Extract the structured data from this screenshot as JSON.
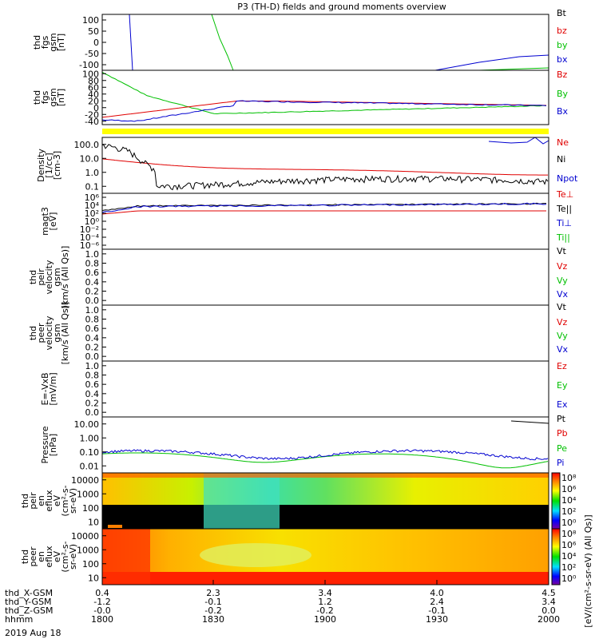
{
  "title": "P3 (TH-D) fields and ground moments overview",
  "footer": {
    "rows": [
      {
        "label": "thd_X-GSM",
        "values": [
          "0.4",
          "2.3",
          "3.4",
          "4.0",
          "4.5"
        ]
      },
      {
        "label": "thd_Y-GSM",
        "values": [
          "-1.2",
          "-0.1",
          "1.2",
          "2.4",
          "3.4"
        ]
      },
      {
        "label": "thd_Z-GSM",
        "values": [
          "-0.0",
          "-0.2",
          "-0.2",
          "-0.1",
          "0.0"
        ]
      },
      {
        "label": "hhmm",
        "values": [
          "1800",
          "1830",
          "1900",
          "1930",
          "2000"
        ]
      }
    ],
    "date": "2019 Aug 18"
  },
  "colors": {
    "black": "#000000",
    "red": "#e00000",
    "green": "#00c000",
    "blue": "#0000d0",
    "yellow": "#ffff00"
  },
  "chart_data": [
    {
      "type": "line",
      "ylabel": [
        "thd",
        "fgs",
        "gsm",
        "[nT]"
      ],
      "ylim": [
        -100,
        100
      ],
      "yticks": [
        "100",
        "50",
        "0",
        "-50",
        "-100"
      ],
      "legend": [
        {
          "name": "Bt",
          "color": "black"
        },
        {
          "name": "bz",
          "color": "red"
        },
        {
          "name": "by",
          "color": "green"
        },
        {
          "name": "bx",
          "color": "blue"
        }
      ]
    },
    {
      "type": "line",
      "ylabel": [
        "thd",
        "fgs",
        "gsm",
        "[nT]"
      ],
      "ylim": [
        -45,
        105
      ],
      "yticks": [
        "100",
        "80",
        "60",
        "40",
        "20",
        "0",
        "-20",
        "-40"
      ],
      "legend": [
        {
          "name": "Bz",
          "color": "red"
        },
        {
          "name": "By",
          "color": "green"
        },
        {
          "name": "Bx",
          "color": "blue"
        }
      ]
    },
    {
      "type": "line",
      "scale": "log",
      "ylabel": [
        "Density",
        "[1/cc]",
        "[cm-3]"
      ],
      "yticks": [
        "100.0",
        "10.0",
        "1.0",
        "0.1"
      ],
      "legend": [
        {
          "name": "Ne",
          "color": "red"
        },
        {
          "name": "Ni",
          "color": "black"
        },
        {
          "name": "Npot",
          "color": "blue"
        }
      ]
    },
    {
      "type": "line",
      "scale": "log",
      "ylabel": [
        "magt3",
        "[eV]"
      ],
      "yticks": [
        "10⁶",
        "10⁴",
        "10²",
        "10⁰",
        "10⁻²",
        "10⁻⁴",
        "10⁻⁶"
      ],
      "legend": [
        {
          "name": "Te⊥",
          "color": "red"
        },
        {
          "name": "Te||",
          "color": "black"
        },
        {
          "name": "Ti⊥",
          "color": "blue"
        },
        {
          "name": "Ti||",
          "color": "green"
        }
      ]
    },
    {
      "type": "line",
      "ylabel": [
        "thd",
        "peir",
        "velocity",
        "gsm",
        "[km/s (All Qs)]"
      ],
      "ylim": [
        0,
        1
      ],
      "yticks": [
        "1.0",
        "0.8",
        "0.6",
        "0.4",
        "0.2",
        "0.0"
      ],
      "legend": [
        {
          "name": "Vt",
          "color": "black"
        },
        {
          "name": "Vz",
          "color": "red"
        },
        {
          "name": "Vy",
          "color": "green"
        },
        {
          "name": "Vx",
          "color": "blue"
        }
      ]
    },
    {
      "type": "line",
      "ylabel": [
        "thd",
        "peer",
        "velocity",
        "gsm",
        "[km/s (All Qs)]"
      ],
      "ylim": [
        0,
        1
      ],
      "yticks": [
        "1.0",
        "0.8",
        "0.6",
        "0.4",
        "0.2",
        "0.0"
      ],
      "legend": [
        {
          "name": "Vt",
          "color": "black"
        },
        {
          "name": "Vz",
          "color": "red"
        },
        {
          "name": "Vy",
          "color": "green"
        },
        {
          "name": "Vx",
          "color": "blue"
        }
      ]
    },
    {
      "type": "line",
      "ylabel": [
        "E=-VxB",
        "[mV/m]"
      ],
      "ylim": [
        0,
        1
      ],
      "yticks": [
        "1.0",
        "0.8",
        "0.6",
        "0.4",
        "0.2",
        "0.0"
      ],
      "legend": [
        {
          "name": "Ez",
          "color": "red"
        },
        {
          "name": "Ey",
          "color": "green"
        },
        {
          "name": "Ex",
          "color": "blue"
        }
      ]
    },
    {
      "type": "line",
      "scale": "log",
      "ylabel": [
        "Pressure",
        "[nPa]"
      ],
      "yticks": [
        "10.00",
        "1.00",
        "0.10",
        "0.01"
      ],
      "legend": [
        {
          "name": "Pt",
          "color": "black"
        },
        {
          "name": "Pb",
          "color": "red"
        },
        {
          "name": "Pe",
          "color": "green"
        },
        {
          "name": "Pi",
          "color": "blue"
        }
      ]
    },
    {
      "type": "heatmap",
      "ylabel": [
        "thd",
        "peir",
        "en",
        "eflux",
        "eV",
        "(cm²-s-",
        "sr-eV)"
      ],
      "yticks": [
        "10000",
        "1000",
        "100",
        "10"
      ]
    },
    {
      "type": "heatmap",
      "ylabel": [
        "thd",
        "peer",
        "en",
        "eflux",
        "eV",
        "(cm²-s-",
        "sr-eV)"
      ],
      "yticks": [
        "10000",
        "1000",
        "100",
        "10"
      ]
    }
  ],
  "colorbar": {
    "label": "[eV/(cm²-s-sr-eV) (All Qs)]",
    "upper_ticks": [
      "10⁸",
      "10⁶",
      "10⁴",
      "10²",
      "10⁰"
    ],
    "lower_ticks": [
      "10⁸",
      "10⁶",
      "10⁴",
      "10²",
      "10⁰"
    ]
  },
  "x_ticks": [
    "1800",
    "1830",
    "1900",
    "1930",
    "2000"
  ]
}
